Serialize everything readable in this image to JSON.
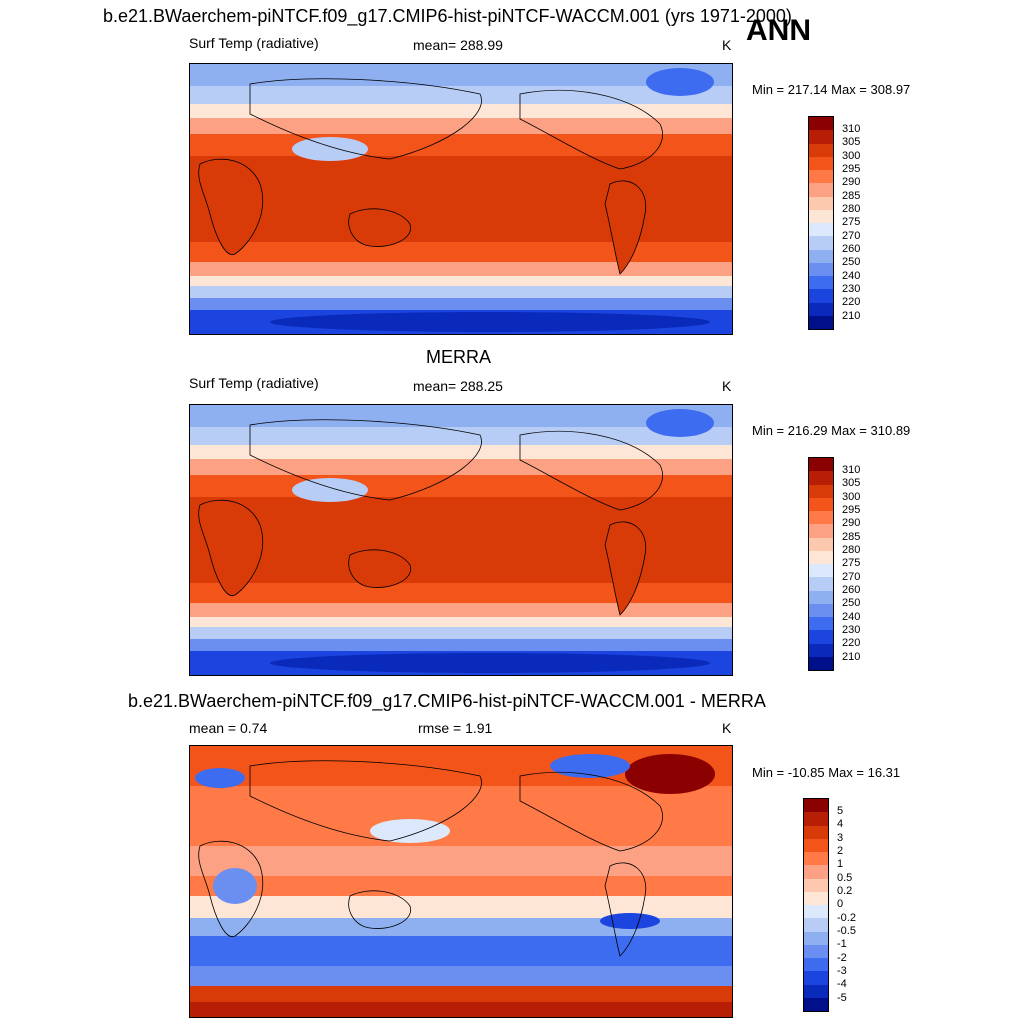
{
  "season": "ANN",
  "panels": [
    {
      "title": "b.e21.BWaerchem-piNTCF.f09_g17.CMIP6-hist-piNTCF-WACCM.001 (yrs 1971-2000)",
      "left_label": "Surf Temp (radiative)",
      "center_label": "mean= 288.99",
      "units": "K",
      "minmax": "Min = 217.14 Max = 308.97",
      "colorbar_labels": [
        "310",
        "305",
        "300",
        "295",
        "290",
        "285",
        "280",
        "275",
        "270",
        "260",
        "250",
        "240",
        "230",
        "220",
        "210"
      ],
      "colorbar_colors": [
        "#8b0000",
        "#b81d05",
        "#d93b08",
        "#f2541a",
        "#ff7a47",
        "#fca183",
        "#fcc9ae",
        "#fde6d6",
        "#dce8fb",
        "#b7cdf5",
        "#8fb0f0",
        "#6a8ff0",
        "#3d6cf0",
        "#1c45e0",
        "#0a2abb",
        "#000f8a"
      ]
    },
    {
      "title": "MERRA",
      "left_label": "Surf Temp (radiative)",
      "center_label": "mean= 288.25",
      "units": "K",
      "minmax": "Min = 216.29 Max = 310.89",
      "colorbar_labels": [
        "310",
        "305",
        "300",
        "295",
        "290",
        "285",
        "280",
        "275",
        "270",
        "260",
        "250",
        "240",
        "230",
        "220",
        "210"
      ],
      "colorbar_colors": [
        "#8b0000",
        "#b81d05",
        "#d93b08",
        "#f2541a",
        "#ff7a47",
        "#fca183",
        "#fcc9ae",
        "#fde6d6",
        "#dce8fb",
        "#b7cdf5",
        "#8fb0f0",
        "#6a8ff0",
        "#3d6cf0",
        "#1c45e0",
        "#0a2abb",
        "#000f8a"
      ]
    },
    {
      "title": "b.e21.BWaerchem-piNTCF.f09_g17.CMIP6-hist-piNTCF-WACCM.001 - MERRA",
      "left_label": "mean =   0.74",
      "center_label": "rmse =   1.91",
      "units": "K",
      "minmax": "Min = -10.85 Max =  16.31",
      "colorbar_labels": [
        "5",
        "4",
        "3",
        "2",
        "1",
        "0.5",
        "0.2",
        "0",
        "-0.2",
        "-0.5",
        "-1",
        "-2",
        "-3",
        "-4",
        "-5"
      ],
      "colorbar_colors": [
        "#8b0000",
        "#b81d05",
        "#d93b08",
        "#f2541a",
        "#ff7a47",
        "#fca183",
        "#fcc9ae",
        "#fde6d6",
        "#dce8fb",
        "#b7cdf5",
        "#8fb0f0",
        "#6a8ff0",
        "#3d6cf0",
        "#1c45e0",
        "#0a2abb",
        "#000f8a"
      ]
    }
  ]
}
